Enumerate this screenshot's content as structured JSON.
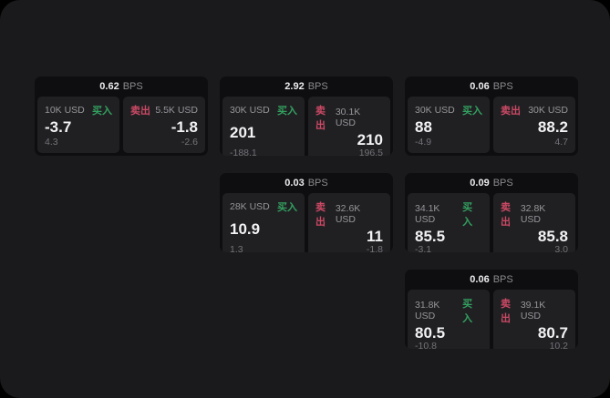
{
  "labels": {
    "buy": "买入",
    "sell": "卖出",
    "bps_suffix": "BPS"
  },
  "colors": {
    "page-bg": "#1a1a1c",
    "card-bg": "#0e0e10",
    "panel-bg": "#202023",
    "buy-green": "#33a05f",
    "sell-red": "#cb4964"
  },
  "cards": [
    {
      "bps": "0.62",
      "row": 1,
      "col": 1,
      "buy": {
        "notional": "10K USD",
        "price": "-3.7",
        "delta": "4.3"
      },
      "sell": {
        "notional": "5.5K USD",
        "price": "-1.8",
        "delta": "-2.6"
      }
    },
    {
      "bps": "2.92",
      "row": 1,
      "col": 2,
      "buy": {
        "notional": "30K USD",
        "price": "201",
        "delta": "-188.1"
      },
      "sell": {
        "notional": "30.1K USD",
        "price": "210",
        "delta": "196.5"
      }
    },
    {
      "bps": "0.06",
      "row": 1,
      "col": 3,
      "buy": {
        "notional": "30K USD",
        "price": "88",
        "delta": "-4.9"
      },
      "sell": {
        "notional": "30K USD",
        "price": "88.2",
        "delta": "4.7"
      }
    },
    {
      "bps": "0.03",
      "row": 2,
      "col": 2,
      "buy": {
        "notional": "28K USD",
        "price": "10.9",
        "delta": "1.3"
      },
      "sell": {
        "notional": "32.6K USD",
        "price": "11",
        "delta": "-1.8"
      }
    },
    {
      "bps": "0.09",
      "row": 2,
      "col": 3,
      "buy": {
        "notional": "34.1K USD",
        "price": "85.5",
        "delta": "-3.1"
      },
      "sell": {
        "notional": "32.8K USD",
        "price": "85.8",
        "delta": "3.0"
      }
    },
    {
      "bps": "0.06",
      "row": 3,
      "col": 3,
      "buy": {
        "notional": "31.8K USD",
        "price": "80.5",
        "delta": "-10.8"
      },
      "sell": {
        "notional": "39.1K USD",
        "price": "80.7",
        "delta": "10.2"
      }
    }
  ]
}
